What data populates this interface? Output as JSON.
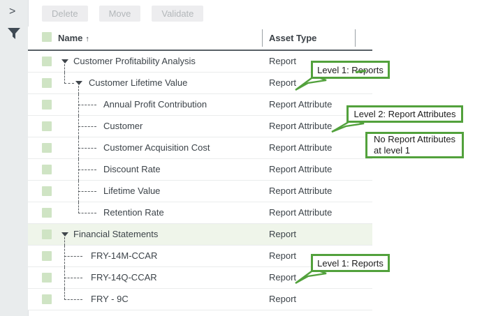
{
  "sidebar": {
    "expand_glyph": ">",
    "icons": [
      {
        "name": "expand-panel-chevron"
      },
      {
        "name": "filter-funnel"
      }
    ]
  },
  "toolbar": {
    "buttons": [
      {
        "label": "Delete",
        "enabled": false
      },
      {
        "label": "Move",
        "enabled": false
      },
      {
        "label": "Validate",
        "enabled": false
      }
    ]
  },
  "table": {
    "columns": [
      {
        "label": "Name",
        "sorted": "ascending"
      },
      {
        "label": "Asset Type"
      }
    ],
    "sort_indicator": "↑",
    "rows": [
      {
        "name": "Customer Profitability Analysis",
        "asset_type": "Report",
        "level": 0,
        "expander": true,
        "connector": "none",
        "continues": true,
        "highlight": false
      },
      {
        "name": "Customer Lifetime Value",
        "asset_type": "Report",
        "level": 1,
        "expander": true,
        "connector": "elbow",
        "continues": true,
        "highlight": false
      },
      {
        "name": "Annual Profit Contribution",
        "asset_type": "Report Attribute",
        "level": 2,
        "expander": false,
        "connector": "tee",
        "continues": false,
        "highlight": false
      },
      {
        "name": "Customer",
        "asset_type": "Report Attribute",
        "level": 2,
        "expander": false,
        "connector": "tee",
        "continues": false,
        "highlight": false
      },
      {
        "name": "Customer Acquisition Cost",
        "asset_type": "Report Attribute",
        "level": 2,
        "expander": false,
        "connector": "tee",
        "continues": false,
        "highlight": false
      },
      {
        "name": "Discount Rate",
        "asset_type": "Report Attribute",
        "level": 2,
        "expander": false,
        "connector": "tee",
        "continues": false,
        "highlight": false
      },
      {
        "name": "Lifetime Value",
        "asset_type": "Report Attribute",
        "level": 2,
        "expander": false,
        "connector": "tee",
        "continues": false,
        "highlight": false
      },
      {
        "name": "Retention Rate",
        "asset_type": "Report Attribute",
        "level": 2,
        "expander": false,
        "connector": "elbow",
        "continues": false,
        "highlight": false
      },
      {
        "name": "Financial Statements",
        "asset_type": "Report",
        "level": 0,
        "expander": true,
        "connector": "none",
        "continues": true,
        "highlight": true
      },
      {
        "name": "FRY-14M-CCAR",
        "asset_type": "Report",
        "level": 1,
        "expander": false,
        "connector": "tee",
        "continues": false,
        "highlight": false
      },
      {
        "name": "FRY-14Q-CCAR",
        "asset_type": "Report",
        "level": 1,
        "expander": false,
        "connector": "tee",
        "continues": false,
        "highlight": false
      },
      {
        "name": "FRY - 9C",
        "asset_type": "Report",
        "level": 1,
        "expander": false,
        "connector": "elbow",
        "continues": false,
        "highlight": false
      }
    ]
  },
  "callouts": [
    {
      "id": "level1-reports-top",
      "text": "Level 1: Reports",
      "tail": true
    },
    {
      "id": "level2-report-attributes",
      "text": "Level 2: Report Attributes",
      "tail": true
    },
    {
      "id": "no-report-attributes",
      "text": "No Report Attributes at level 1",
      "tail": false
    },
    {
      "id": "level1-reports-bottom",
      "text": "Level 1: Reports",
      "tail": true
    }
  ],
  "colors": {
    "accent_green": "#52a13c",
    "checkbox_green": "#cfe4c4",
    "highlight_row": "#eff5ea",
    "text_dark": "#3c4349"
  }
}
